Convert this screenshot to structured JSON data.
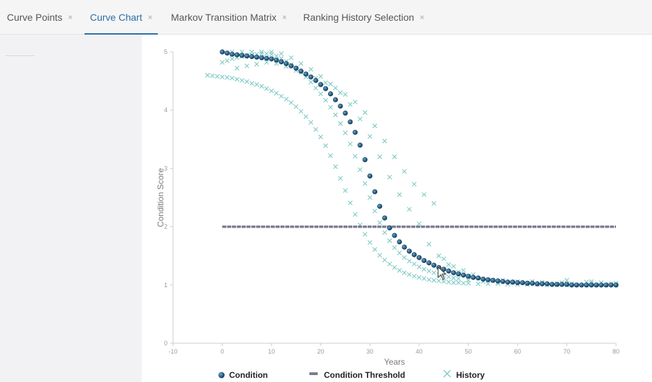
{
  "tabs": [
    {
      "label": "Curve Points",
      "close": "×",
      "active": false
    },
    {
      "label": "Curve Chart",
      "close": "×",
      "active": true
    },
    {
      "label": "Markov Transition Matrix",
      "close": "×",
      "active": false
    },
    {
      "label": "Ranking History Selection",
      "close": "×",
      "active": false
    }
  ],
  "colors": {
    "condition": "#0d3c5e",
    "threshold": "#7c7c90",
    "history": "#7ec9c6",
    "tab_active": "#2b6ea6"
  },
  "chart_data": {
    "type": "scatter",
    "xlabel": "Years",
    "ylabel": "Condition Score",
    "xlim": [
      -10,
      80
    ],
    "ylim": [
      0,
      5
    ],
    "x_ticks": [
      -10,
      0,
      10,
      20,
      30,
      40,
      50,
      60,
      70,
      80
    ],
    "y_ticks": [
      0,
      1,
      2,
      3,
      4,
      5
    ],
    "grid": false,
    "legend_position": "bottom",
    "series": [
      {
        "name": "Condition",
        "marker": "circle",
        "x": [
          0,
          1,
          2,
          3,
          4,
          5,
          6,
          7,
          8,
          9,
          10,
          11,
          12,
          13,
          14,
          15,
          16,
          17,
          18,
          19,
          20,
          21,
          22,
          23,
          24,
          25,
          26,
          27,
          28,
          29,
          30,
          31,
          32,
          33,
          34,
          35,
          36,
          37,
          38,
          39,
          40,
          41,
          42,
          43,
          44,
          45,
          46,
          47,
          48,
          49,
          50,
          51,
          52,
          53,
          54,
          55,
          56,
          57,
          58,
          59,
          60,
          61,
          62,
          63,
          64,
          65,
          66,
          67,
          68,
          69,
          70,
          71,
          72,
          73,
          74,
          75,
          76,
          77,
          78,
          79,
          80
        ],
        "y": [
          5.0,
          4.98,
          4.96,
          4.95,
          4.94,
          4.93,
          4.92,
          4.91,
          4.9,
          4.89,
          4.88,
          4.86,
          4.83,
          4.8,
          4.76,
          4.72,
          4.67,
          4.62,
          4.57,
          4.51,
          4.44,
          4.37,
          4.28,
          4.18,
          4.07,
          3.95,
          3.8,
          3.62,
          3.4,
          3.15,
          2.87,
          2.6,
          2.35,
          2.15,
          1.98,
          1.85,
          1.74,
          1.65,
          1.58,
          1.52,
          1.47,
          1.42,
          1.38,
          1.34,
          1.3,
          1.27,
          1.24,
          1.21,
          1.19,
          1.17,
          1.15,
          1.13,
          1.12,
          1.1,
          1.09,
          1.08,
          1.07,
          1.06,
          1.05,
          1.05,
          1.04,
          1.04,
          1.03,
          1.03,
          1.02,
          1.02,
          1.02,
          1.01,
          1.01,
          1.01,
          1.01,
          1.0,
          1.0,
          1.0,
          1.0,
          1.0,
          1.0,
          1.0,
          1.0,
          1.0,
          1.0
        ]
      },
      {
        "name": "Condition Threshold",
        "marker": "line",
        "x": [
          0,
          80
        ],
        "y": [
          2.0,
          2.0
        ]
      },
      {
        "name": "History",
        "marker": "x",
        "x": [
          -3,
          -2,
          -1,
          0,
          1,
          2,
          3,
          4,
          5,
          6,
          7,
          8,
          9,
          10,
          11,
          12,
          13,
          14,
          15,
          16,
          17,
          18,
          19,
          20,
          21,
          22,
          23,
          24,
          25,
          26,
          27,
          28,
          29,
          30,
          31,
          32,
          33,
          34,
          35,
          36,
          37,
          38,
          39,
          40,
          41,
          42,
          43,
          44,
          45,
          46,
          47,
          48,
          49,
          50,
          52,
          54,
          56,
          58,
          60,
          62,
          64,
          66,
          68,
          70,
          72,
          74,
          76,
          78,
          80,
          0,
          1,
          2,
          3,
          4,
          5,
          6,
          7,
          8,
          9,
          10,
          11,
          12,
          13,
          14,
          15,
          16,
          17,
          18,
          19,
          20,
          21,
          22,
          23,
          24,
          25,
          26,
          27,
          28,
          29,
          30,
          31,
          32,
          33,
          34,
          35,
          36,
          37,
          38,
          39,
          40,
          41,
          42,
          43,
          44,
          45,
          46,
          47,
          48,
          50,
          53,
          56,
          59,
          62,
          65,
          68,
          71,
          74,
          77,
          80,
          2,
          4,
          6,
          8,
          10,
          12,
          14,
          16,
          18,
          20,
          22,
          24,
          26,
          28,
          30,
          32,
          34,
          36,
          38,
          40,
          42,
          44,
          46,
          48,
          50,
          55,
          60,
          65,
          70,
          75,
          3,
          5,
          7,
          9,
          11,
          13,
          15,
          17,
          19,
          21,
          23,
          25,
          27,
          29,
          31,
          33,
          35,
          37,
          39,
          41,
          43,
          45,
          47,
          49,
          51,
          57,
          63,
          69,
          75,
          79
        ],
        "y": [
          4.6,
          4.59,
          4.58,
          4.57,
          4.56,
          4.55,
          4.53,
          4.51,
          4.49,
          4.46,
          4.44,
          4.41,
          4.37,
          4.33,
          4.29,
          4.24,
          4.19,
          4.13,
          4.06,
          3.98,
          3.89,
          3.79,
          3.67,
          3.54,
          3.39,
          3.22,
          3.03,
          2.83,
          2.62,
          2.41,
          2.21,
          2.03,
          1.87,
          1.73,
          1.61,
          1.51,
          1.43,
          1.36,
          1.3,
          1.25,
          1.21,
          1.18,
          1.15,
          1.13,
          1.11,
          1.09,
          1.08,
          1.07,
          1.06,
          1.05,
          1.04,
          1.04,
          1.03,
          1.03,
          1.02,
          1.02,
          1.02,
          1.01,
          1.01,
          1.01,
          1.01,
          1.0,
          1.0,
          1.0,
          1.0,
          1.0,
          1.0,
          1.0,
          1.0,
          4.82,
          4.85,
          4.88,
          4.9,
          4.92,
          4.94,
          4.95,
          4.96,
          4.97,
          4.97,
          4.96,
          4.93,
          4.89,
          4.84,
          4.78,
          4.72,
          4.65,
          4.57,
          4.48,
          4.38,
          4.28,
          4.17,
          4.05,
          3.92,
          3.77,
          3.61,
          3.42,
          3.21,
          2.98,
          2.74,
          2.5,
          2.27,
          2.07,
          1.9,
          1.76,
          1.64,
          1.55,
          1.47,
          1.41,
          1.36,
          1.31,
          1.27,
          1.24,
          1.21,
          1.18,
          1.16,
          1.14,
          1.12,
          1.11,
          1.08,
          1.06,
          1.05,
          1.04,
          1.03,
          1.03,
          1.02,
          1.02,
          1.05,
          1.04,
          1.03,
          5.0,
          5.0,
          5.0,
          5.0,
          5.0,
          4.97,
          4.9,
          4.8,
          4.7,
          4.58,
          4.45,
          4.3,
          4.1,
          3.85,
          3.55,
          3.2,
          2.85,
          2.55,
          2.3,
          2.05,
          1.7,
          1.5,
          1.35,
          1.22,
          1.15,
          1.08,
          1.06,
          1.05,
          1.08,
          1.06,
          4.72,
          4.76,
          4.79,
          4.82,
          4.8,
          4.75,
          4.68,
          4.62,
          4.55,
          4.47,
          4.38,
          4.27,
          4.14,
          3.96,
          3.73,
          3.47,
          3.2,
          2.95,
          2.73,
          2.55,
          2.4,
          1.45,
          1.32,
          1.25,
          1.18,
          1.08,
          1.06,
          1.04,
          1.03,
          1.02
        ]
      }
    ]
  }
}
